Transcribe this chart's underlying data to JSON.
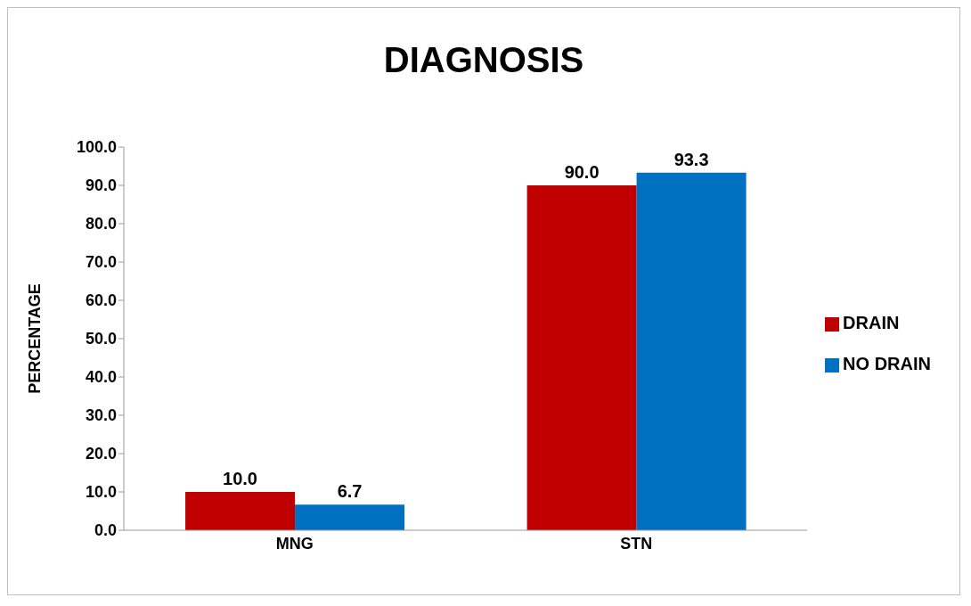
{
  "chart_data": {
    "type": "bar",
    "title": "DIAGNOSIS",
    "ylabel": "PERCENTAGE",
    "categories": [
      "MNG",
      "STN"
    ],
    "series": [
      {
        "name": "DRAIN",
        "color": "#c00000",
        "values": [
          10.0,
          90.0
        ],
        "value_labels": [
          "10.0",
          "90.0"
        ]
      },
      {
        "name": "NO DRAIN",
        "color": "#0070c0",
        "values": [
          6.7,
          93.3
        ],
        "value_labels": [
          "6.7",
          "93.3"
        ]
      }
    ],
    "ylim": [
      0,
      100
    ],
    "yticks": [
      {
        "value": 0,
        "label": "0.0"
      },
      {
        "value": 10,
        "label": "10.0"
      },
      {
        "value": 20,
        "label": "20.0"
      },
      {
        "value": 30,
        "label": "30.0"
      },
      {
        "value": 40,
        "label": "40.0"
      },
      {
        "value": 50,
        "label": "50.0"
      },
      {
        "value": 60,
        "label": "60.0"
      },
      {
        "value": 70,
        "label": "70.0"
      },
      {
        "value": 80,
        "label": "80.0"
      },
      {
        "value": 90,
        "label": "90.0"
      },
      {
        "value": 100,
        "label": "100.0"
      }
    ],
    "grid": false,
    "legend": "right"
  }
}
